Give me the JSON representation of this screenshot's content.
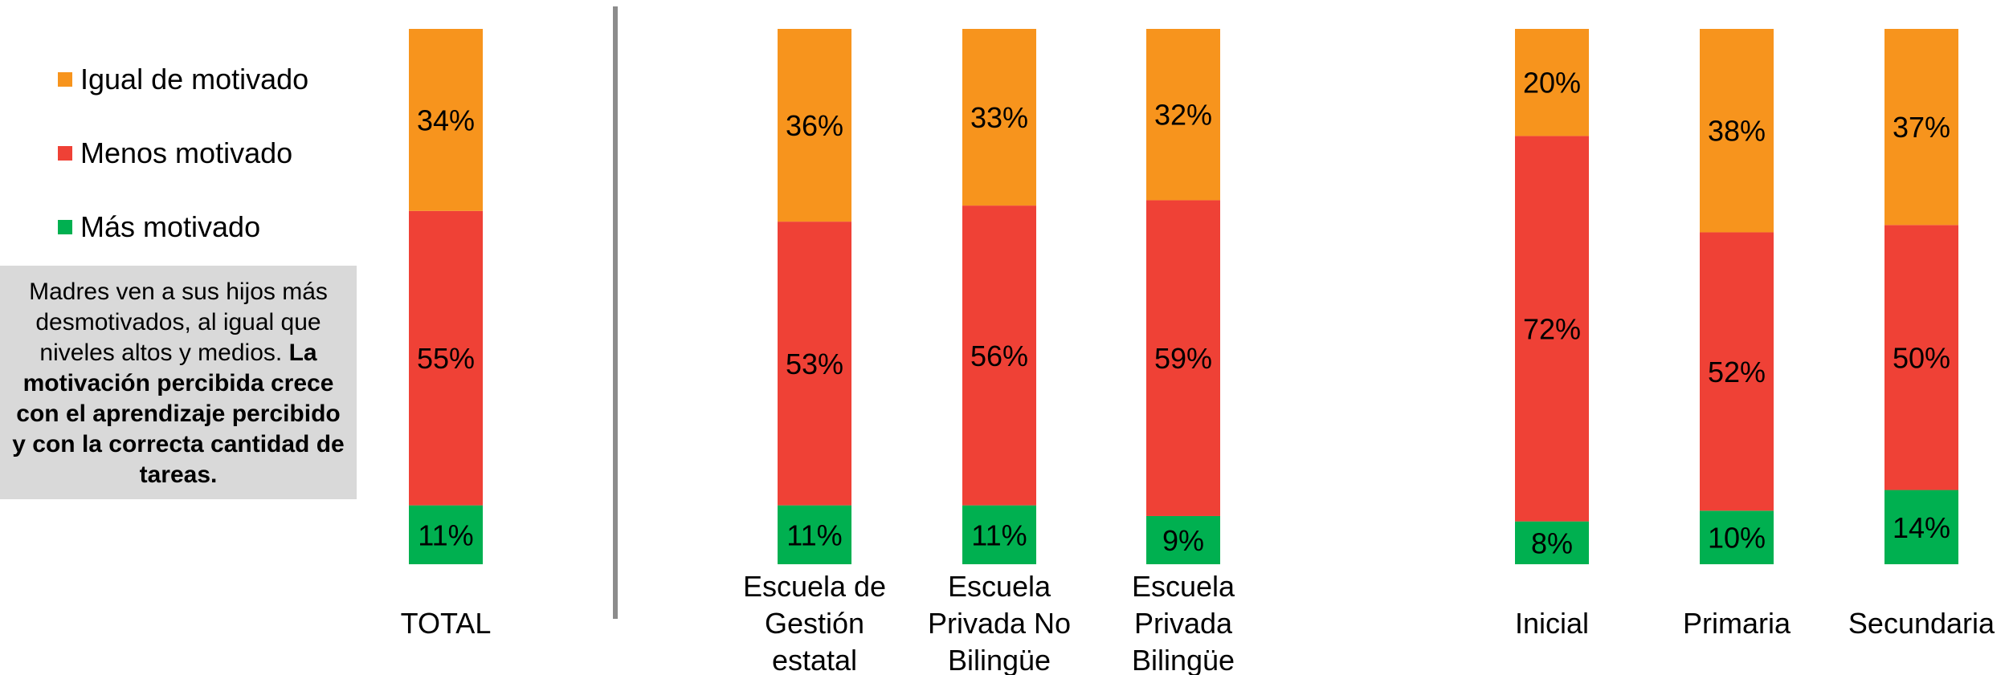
{
  "legend": [
    {
      "label": "Igual de motivado",
      "color": "#f7941d"
    },
    {
      "label": "Menos motivado",
      "color": "#ef4136"
    },
    {
      "label": "Más motivado",
      "color": "#00b050"
    }
  ],
  "note": {
    "normal": "Madres ven a sus hijos más desmotivados, al igual que niveles altos y medios. ",
    "bold": "La motivación percibida crece con el aprendizaje percibido y con la correcta cantidad de tareas."
  },
  "chart_data": {
    "type": "bar",
    "stacked": true,
    "categories": [
      [
        "TOTAL"
      ],
      [
        "Escuela de",
        "Gestión",
        "estatal"
      ],
      [
        "Escuela",
        "Privada No",
        "Bilingüe"
      ],
      [
        "Escuela",
        "Privada",
        "Bilingüe"
      ],
      [
        "Inicial"
      ],
      [
        "Primaria"
      ],
      [
        "Secundaria"
      ]
    ],
    "series": [
      {
        "name": "Más motivado",
        "color": "#00b050",
        "values": [
          11,
          11,
          11,
          9,
          8,
          10,
          14
        ]
      },
      {
        "name": "Menos motivado",
        "color": "#ef4136",
        "values": [
          55,
          53,
          56,
          59,
          72,
          52,
          50
        ]
      },
      {
        "name": "Igual de motivado",
        "color": "#f7941d",
        "values": [
          34,
          36,
          33,
          32,
          20,
          38,
          37
        ]
      }
    ],
    "value_labels": [
      [
        "11%",
        "11%",
        "11%",
        "9%",
        "8%",
        "10%",
        "14%"
      ],
      [
        "55%",
        "53%",
        "56%",
        "59%",
        "72%",
        "52%",
        "50%"
      ],
      [
        "34%",
        "36%",
        "33%",
        "32%",
        "20%",
        "38%",
        "37%"
      ]
    ],
    "ylim": [
      0,
      100
    ],
    "legend_position": "left"
  }
}
